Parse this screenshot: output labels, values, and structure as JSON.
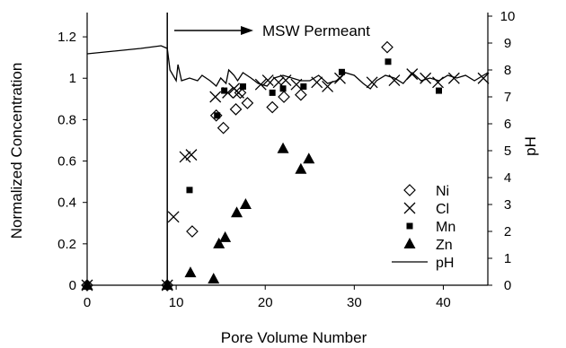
{
  "chart_data": {
    "type": "scatter",
    "xlabel": "Pore Volume Number",
    "ylabel": "Normalized Concentration",
    "y2label": "pH",
    "xlim": [
      0,
      45
    ],
    "ylim": [
      0,
      1.3
    ],
    "y2lim": [
      0,
      10
    ],
    "xticks": [
      "0",
      "10",
      "20",
      "30",
      "40"
    ],
    "yticks": [
      "0",
      "0.2",
      "0.4",
      "0.6",
      "0.8",
      "1",
      "1.2"
    ],
    "y2ticks": [
      "0",
      "1",
      "2",
      "3",
      "4",
      "5",
      "6",
      "7",
      "8",
      "9",
      "10"
    ],
    "grid": false,
    "legend_position": "bottom-right",
    "annotation": {
      "text": "MSW Permeant",
      "marker_x": 9,
      "arrow_to_x": 16
    },
    "series": [
      {
        "name": "Ni",
        "marker": "diamond-open",
        "axis": "left",
        "x": [
          0,
          9,
          11.8,
          14.5,
          15.3,
          16.7,
          17.2,
          18,
          20.8,
          22.1,
          24,
          33.7
        ],
        "y": [
          0,
          0,
          0.26,
          0.82,
          0.76,
          0.85,
          0.93,
          0.88,
          0.86,
          0.91,
          0.92,
          1.15
        ]
      },
      {
        "name": "Cl",
        "marker": "x",
        "axis": "left",
        "x": [
          0,
          9,
          9.7,
          11,
          11.7,
          14.4,
          15.8,
          16.5,
          17,
          19.5,
          20.3,
          21.5,
          22.3,
          23.5,
          25.8,
          27,
          28.4,
          32,
          34.5,
          36.5,
          38,
          39.4,
          41.2,
          44.5
        ],
        "y": [
          0,
          0,
          0.33,
          0.62,
          0.63,
          0.91,
          0.93,
          0.95,
          0.93,
          0.97,
          0.99,
          0.98,
          0.99,
          0.97,
          0.98,
          0.96,
          1.0,
          0.98,
          0.99,
          1.02,
          1.0,
          0.98,
          1.0,
          1.0
        ],
        "note": "Cl at 32 appears just right of 32"
      },
      {
        "name": "Mn",
        "marker": "square",
        "axis": "left",
        "x": [
          0,
          9,
          11.5,
          14.6,
          15.4,
          17.5,
          20.8,
          22,
          24.3,
          28.6,
          33.8,
          39.5
        ],
        "y": [
          0,
          0,
          0.46,
          0.82,
          0.94,
          0.96,
          0.93,
          0.95,
          0.96,
          1.03,
          1.08,
          0.94
        ]
      },
      {
        "name": "Zn",
        "marker": "triangle",
        "axis": "left",
        "x": [
          0,
          9,
          11.6,
          14.2,
          14.8,
          15.5,
          16.8,
          17.8,
          22,
          24,
          24.9
        ],
        "y": [
          0,
          0,
          0.06,
          0.03,
          0.2,
          0.23,
          0.35,
          0.39,
          0.66,
          0.56,
          0.61
        ]
      },
      {
        "name": "pH",
        "marker": "line",
        "axis": "right",
        "x": [
          0,
          3,
          6,
          8.3,
          9.0,
          9.3,
          10.0,
          10.2,
          10.6,
          11.5,
          12.4,
          12.9,
          13.8,
          14.5,
          15.0,
          15.6,
          15.9,
          16.2,
          16.5,
          16.9,
          17.5,
          18.4,
          19.2,
          20.2,
          21.0,
          22.0,
          23.0,
          24.0,
          25.0,
          26.0,
          27.0,
          28.0,
          29.0,
          30.0,
          31.0,
          31.8,
          32.5,
          33.5,
          34.5,
          35.5,
          36.5,
          37.5,
          38.5,
          39.5,
          40.5,
          41.5,
          42.5,
          43.5,
          45.0
        ],
        "y": [
          8.6,
          8.7,
          8.8,
          8.9,
          8.8,
          8.0,
          7.6,
          8.2,
          7.6,
          7.7,
          7.6,
          7.8,
          7.6,
          7.4,
          7.7,
          7.5,
          8.0,
          7.9,
          7.8,
          7.6,
          7.9,
          7.7,
          7.5,
          7.4,
          7.7,
          7.8,
          7.7,
          7.6,
          7.6,
          7.8,
          7.5,
          7.6,
          7.9,
          7.8,
          7.5,
          7.3,
          7.6,
          7.8,
          7.7,
          7.5,
          7.9,
          7.6,
          7.7,
          7.6,
          7.8,
          7.7,
          7.8,
          7.6,
          7.9
        ]
      }
    ]
  }
}
